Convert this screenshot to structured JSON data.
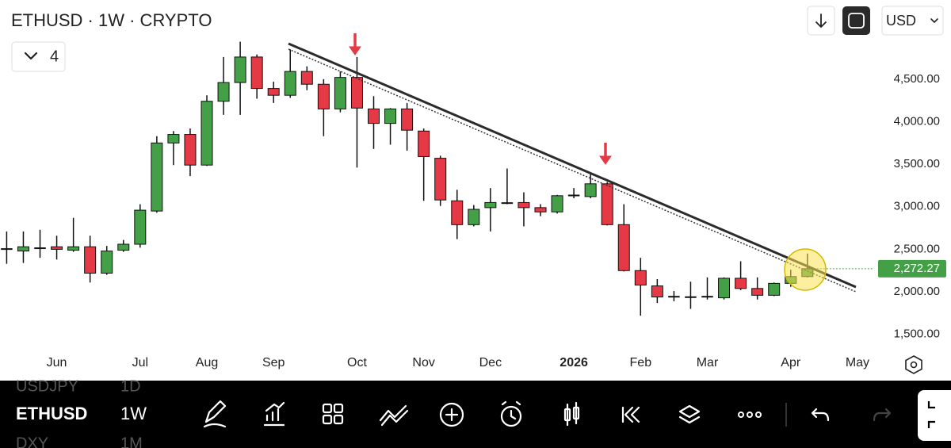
{
  "chart_data": {
    "type": "candlestick",
    "title": "ETHUSD · 1W · CRYPTO",
    "open": [
      2500,
      2480,
      2520,
      2530,
      2490,
      2530,
      2220,
      2490,
      2560,
      2950,
      3750,
      3850,
      3490,
      4240,
      4460,
      4760,
      4390,
      4310,
      4590,
      4440,
      4150,
      4520,
      4150,
      3980,
      4150,
      3890,
      3570,
      3070,
      2790,
      2990,
      3050,
      3050,
      2990,
      2940,
      3130,
      3120,
      3270,
      2790,
      2250,
      2070,
      1950,
      1945,
      1940,
      1930,
      2160,
      2040,
      1960,
      2100,
      2180
    ],
    "high": [
      2710,
      2710,
      2730,
      2660,
      2870,
      2660,
      2540,
      2610,
      3030,
      3830,
      3890,
      3920,
      4310,
      4760,
      4940,
      4790,
      4470,
      4850,
      4650,
      4500,
      4590,
      4760,
      4300,
      4160,
      4220,
      3920,
      3600,
      3200,
      3020,
      3220,
      3450,
      3170,
      3030,
      3140,
      3220,
      3390,
      3290,
      3030,
      2400,
      2150,
      2010,
      2120,
      2170,
      2170,
      2360,
      2170,
      2110,
      2260,
      2450
    ],
    "low": [
      2330,
      2340,
      2400,
      2380,
      2470,
      2110,
      2200,
      2470,
      2520,
      2930,
      3490,
      3360,
      3480,
      4080,
      4080,
      4270,
      4220,
      4280,
      4370,
      3830,
      4110,
      3460,
      3680,
      3730,
      3660,
      3070,
      3010,
      2620,
      2770,
      2710,
      3030,
      2770,
      2890,
      2920,
      3100,
      3100,
      2780,
      2240,
      1720,
      1870,
      1890,
      1800,
      1910,
      1910,
      2020,
      1910,
      1950,
      2060,
      2170
    ],
    "close": [
      2510,
      2530,
      2510,
      2500,
      2530,
      2220,
      2480,
      2560,
      2960,
      3750,
      3850,
      3490,
      4240,
      4460,
      4760,
      4390,
      4310,
      4590,
      4440,
      4150,
      4520,
      4160,
      3980,
      4150,
      3900,
      3590,
      3080,
      2790,
      2970,
      3050,
      3040,
      2990,
      2940,
      3130,
      3140,
      3270,
      2790,
      2250,
      2080,
      1940,
      1940,
      1935,
      1950,
      2160,
      2040,
      1960,
      2100,
      2180,
      2272.27
    ],
    "last_value_label": "2,272.27",
    "up_color": "#43a047",
    "down_color": "#e53945",
    "xlim": [
      -0.4,
      52
    ],
    "xticks": [
      {
        "value": 3,
        "label": "Jun"
      },
      {
        "value": 8,
        "label": "Jul"
      },
      {
        "value": 12,
        "label": "Aug"
      },
      {
        "value": 16,
        "label": "Sep"
      },
      {
        "value": 21,
        "label": "Oct"
      },
      {
        "value": 25,
        "label": "Nov"
      },
      {
        "value": 29,
        "label": "Dec"
      },
      {
        "value": 34,
        "label": "2026"
      },
      {
        "value": 38,
        "label": "Feb"
      },
      {
        "value": 42,
        "label": "Mar"
      },
      {
        "value": 47,
        "label": "Apr"
      },
      {
        "value": 51,
        "label": "May"
      }
    ],
    "ylim": [
      1330,
      5430
    ],
    "yticks": [
      {
        "value": 1500,
        "label": "1,500.00"
      },
      {
        "value": 2000,
        "label": "2,000.00"
      },
      {
        "value": 2500,
        "label": "2,500.00"
      },
      {
        "value": 3000,
        "label": "3,000.00"
      },
      {
        "value": 3500,
        "label": "3,500.00"
      },
      {
        "value": 4000,
        "label": "4,000.00"
      },
      {
        "value": 4500,
        "label": "4,500.00"
      }
    ]
  },
  "header": {
    "indicator_count": "4",
    "currency": "USD"
  },
  "toolbar": {
    "prev_symbol": "USDJPY",
    "prev_interval": "1D",
    "symbol": "ETHUSD",
    "interval": "1W",
    "next_symbol": "DXY",
    "next_interval": "1M"
  }
}
